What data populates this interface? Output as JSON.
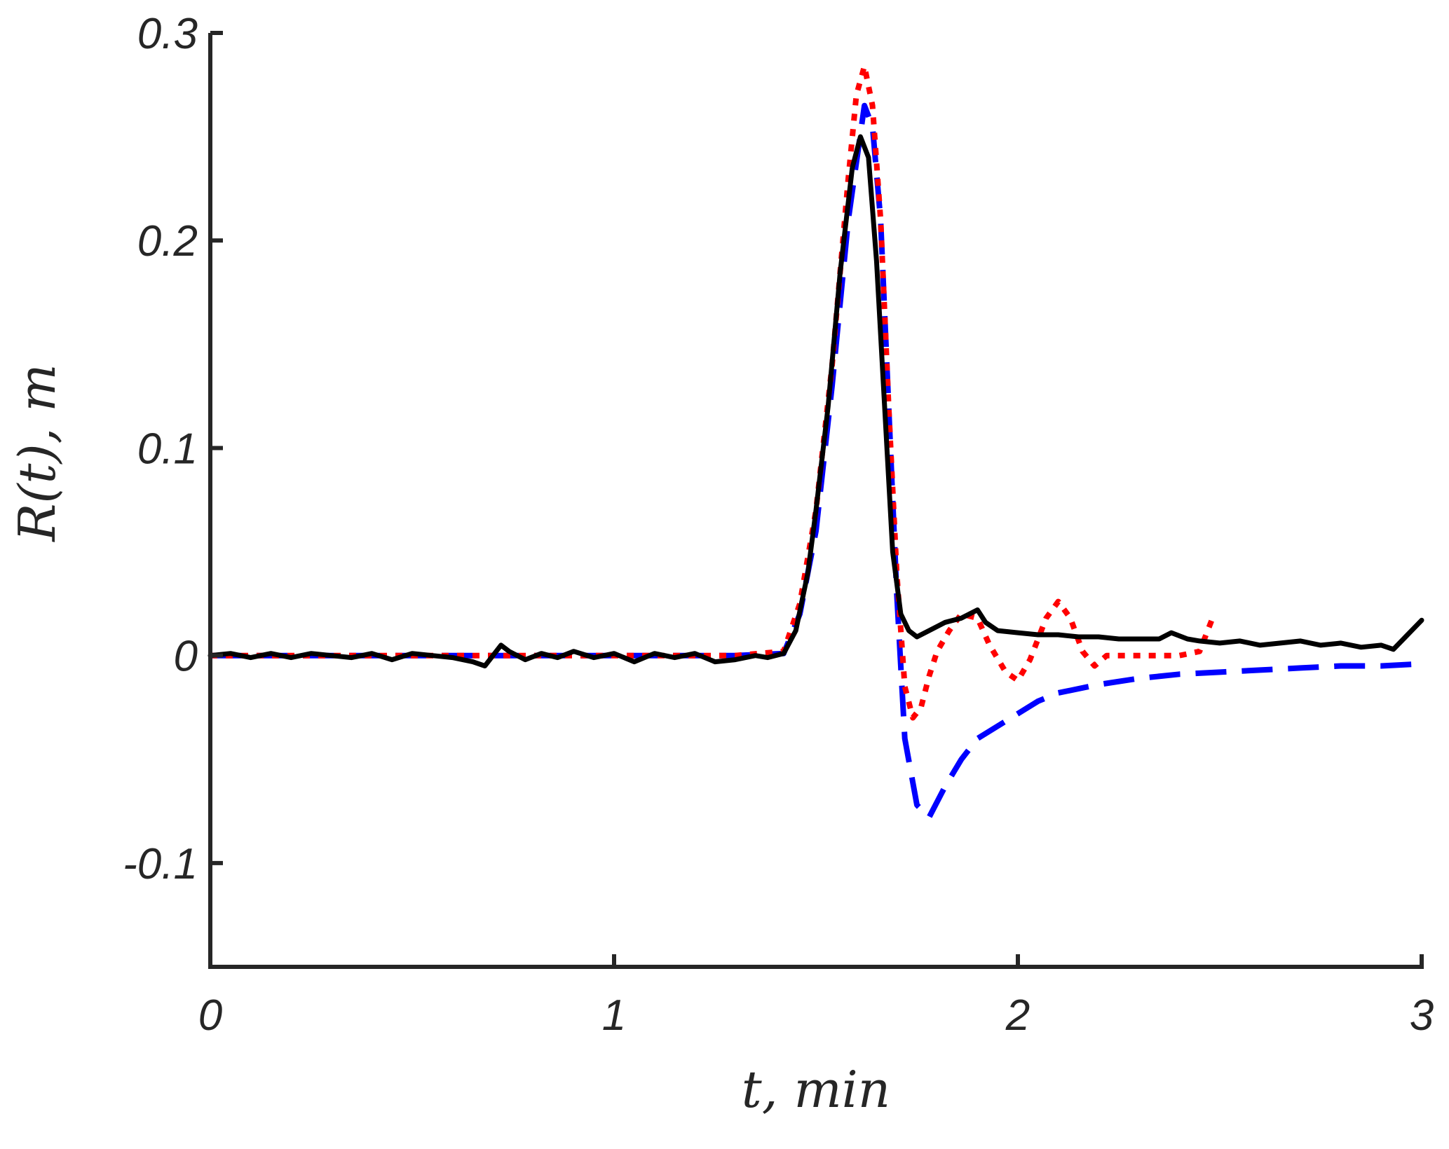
{
  "chart_data": {
    "type": "line",
    "title": "",
    "xlabel": "t, min",
    "ylabel": "R(t), m",
    "xlim": [
      0,
      3
    ],
    "ylim": [
      -0.15,
      0.3
    ],
    "xticks": [
      0,
      1,
      2,
      3
    ],
    "xtick_labels": [
      "0",
      "1",
      "2",
      "3"
    ],
    "yticks": [
      -0.1,
      0,
      0.1,
      0.2,
      0.3
    ],
    "ytick_labels": [
      "-0.1",
      "0",
      "0.1",
      "0.2",
      "0.3"
    ],
    "grid": false,
    "legend": "none",
    "series": [
      {
        "color": "#0000ff",
        "style": "dashed",
        "x": [
          0,
          0.5,
          1.0,
          1.3,
          1.42,
          1.46,
          1.5,
          1.54,
          1.58,
          1.62,
          1.64,
          1.66,
          1.68,
          1.7,
          1.72,
          1.75,
          1.78,
          1.82,
          1.86,
          1.9,
          1.95,
          2.0,
          2.05,
          2.1,
          2.2,
          2.3,
          2.4,
          2.5,
          2.6,
          2.7,
          2.8,
          2.9,
          3.0
        ],
        "y": [
          0,
          0,
          0,
          0,
          0.001,
          0.02,
          0.06,
          0.13,
          0.21,
          0.265,
          0.255,
          0.21,
          0.12,
          0.03,
          -0.04,
          -0.072,
          -0.078,
          -0.063,
          -0.05,
          -0.04,
          -0.034,
          -0.028,
          -0.022,
          -0.018,
          -0.014,
          -0.011,
          -0.009,
          -0.008,
          -0.007,
          -0.006,
          -0.005,
          -0.005,
          -0.004
        ]
      },
      {
        "color": "#ff0000",
        "style": "dotted",
        "x": [
          0,
          0.5,
          1.0,
          1.3,
          1.42,
          1.46,
          1.5,
          1.54,
          1.58,
          1.6,
          1.62,
          1.64,
          1.66,
          1.68,
          1.7,
          1.72,
          1.74,
          1.76,
          1.78,
          1.8,
          1.83,
          1.86,
          1.9,
          1.93,
          1.97,
          2.0,
          2.03,
          2.07,
          2.1,
          2.13,
          2.16,
          2.19,
          2.22,
          2.3,
          2.4,
          2.45,
          2.48
        ],
        "y": [
          0,
          0,
          0,
          0,
          0.002,
          0.025,
          0.07,
          0.14,
          0.23,
          0.27,
          0.284,
          0.265,
          0.21,
          0.12,
          0.04,
          -0.015,
          -0.03,
          -0.025,
          -0.01,
          0.002,
          0.012,
          0.02,
          0.018,
          0.005,
          -0.008,
          -0.012,
          -0.002,
          0.018,
          0.026,
          0.018,
          0.002,
          -0.005,
          0,
          0,
          0,
          0.002,
          0.017
        ]
      },
      {
        "color": "#000000",
        "style": "solid",
        "x": [
          0,
          0.05,
          0.1,
          0.15,
          0.2,
          0.25,
          0.3,
          0.35,
          0.4,
          0.45,
          0.5,
          0.55,
          0.6,
          0.65,
          0.68,
          0.72,
          0.74,
          0.78,
          0.82,
          0.86,
          0.9,
          0.95,
          1.0,
          1.05,
          1.1,
          1.15,
          1.2,
          1.25,
          1.3,
          1.35,
          1.38,
          1.42,
          1.45,
          1.48,
          1.5,
          1.53,
          1.56,
          1.59,
          1.61,
          1.63,
          1.65,
          1.67,
          1.69,
          1.71,
          1.73,
          1.75,
          1.78,
          1.82,
          1.86,
          1.9,
          1.92,
          1.95,
          2.0,
          2.05,
          2.1,
          2.15,
          2.2,
          2.25,
          2.3,
          2.35,
          2.38,
          2.42,
          2.45,
          2.5,
          2.55,
          2.6,
          2.65,
          2.7,
          2.75,
          2.8,
          2.85,
          2.9,
          2.93,
          2.96,
          3.0
        ],
        "y": [
          0,
          0.001,
          -0.001,
          0.001,
          -0.001,
          0.001,
          0,
          -0.001,
          0.001,
          -0.002,
          0.001,
          0,
          -0.001,
          -0.003,
          -0.005,
          0.005,
          0.002,
          -0.002,
          0.001,
          -0.001,
          0.002,
          -0.001,
          0.001,
          -0.003,
          0.001,
          -0.001,
          0.001,
          -0.003,
          -0.002,
          0,
          -0.001,
          0.001,
          0.012,
          0.04,
          0.07,
          0.12,
          0.185,
          0.235,
          0.25,
          0.24,
          0.19,
          0.12,
          0.05,
          0.02,
          0.012,
          0.009,
          0.012,
          0.016,
          0.018,
          0.022,
          0.016,
          0.012,
          0.011,
          0.01,
          0.01,
          0.009,
          0.009,
          0.008,
          0.008,
          0.008,
          0.011,
          0.008,
          0.007,
          0.006,
          0.007,
          0.005,
          0.006,
          0.007,
          0.005,
          0.006,
          0.004,
          0.005,
          0.003,
          0.009,
          0.017
        ]
      }
    ]
  }
}
